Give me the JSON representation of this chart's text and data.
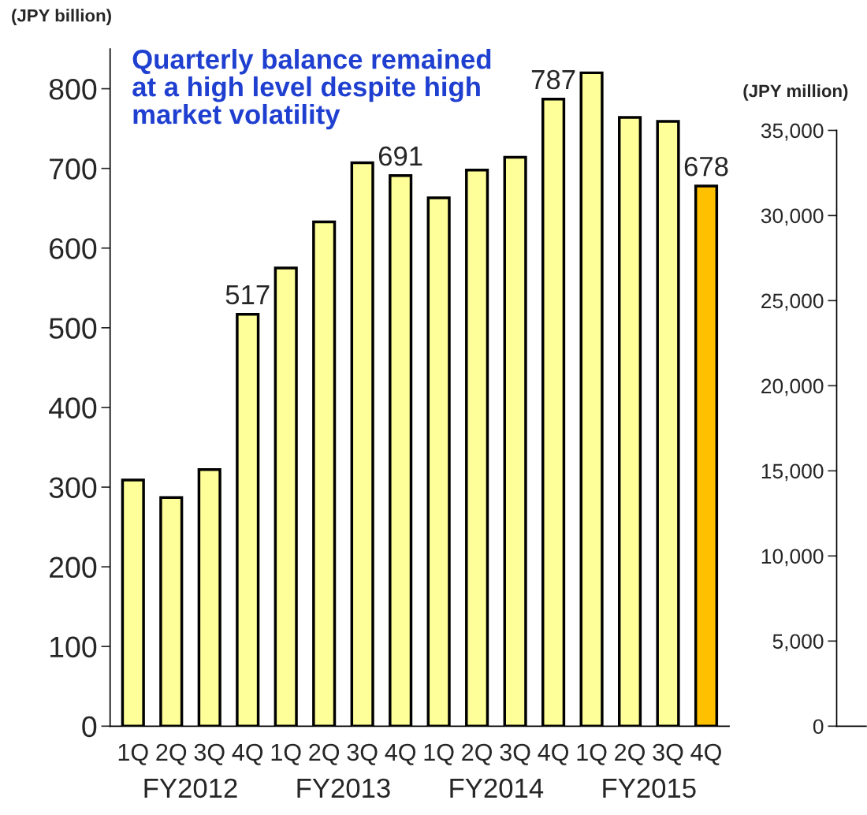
{
  "chart_data": [
    {
      "type": "bar",
      "ylabel": "(JPY billion)",
      "categories": [
        "1Q",
        "2Q",
        "3Q",
        "4Q",
        "1Q",
        "2Q",
        "3Q",
        "4Q",
        "1Q",
        "2Q",
        "3Q",
        "4Q",
        "1Q",
        "2Q",
        "3Q",
        "4Q"
      ],
      "values": [
        309,
        287,
        322,
        517,
        575,
        633,
        707,
        691,
        663,
        698,
        714,
        787,
        820,
        764,
        759,
        678
      ],
      "colors": [
        "#ffff99",
        "#ffff99",
        "#ffff99",
        "#ffff99",
        "#ffff99",
        "#ffff99",
        "#ffff99",
        "#ffff99",
        "#ffff99",
        "#ffff99",
        "#ffff99",
        "#ffff99",
        "#ffff99",
        "#ffff99",
        "#ffff99",
        "#ffc000"
      ],
      "value_labels": [
        null,
        null,
        null,
        "517",
        null,
        null,
        null,
        "691",
        null,
        null,
        null,
        "787",
        null,
        null,
        null,
        "678"
      ],
      "ylim": [
        0,
        850
      ],
      "yticks": [
        0,
        100,
        200,
        300,
        400,
        500,
        600,
        700,
        800
      ],
      "annotations": [
        "Quarterly balance remained at a high level despite high market volatility",
        "FY2012",
        "FY2013",
        "FY2014",
        "FY2015"
      ],
      "grid": false,
      "legend": false
    },
    {
      "type": "bar",
      "ylabel": "(JPY million)",
      "categories": [
        null
      ],
      "values": [
        null
      ],
      "ylim": [
        0,
        35000
      ],
      "yticks": [
        0,
        {
          "value": 5000,
          "label": "5,000"
        },
        {
          "value": 10000,
          "label": "10,000"
        },
        {
          "value": 15000,
          "label": "15,000"
        },
        {
          "value": 20000,
          "label": "20,000"
        },
        {
          "value": 25000,
          "label": "25,000"
        },
        {
          "value": 30000,
          "label": "30,000"
        },
        {
          "value": 35000,
          "label": "35,000"
        }
      ],
      "tick_labels": "y",
      "grid": false,
      "legend": false
    }
  ]
}
